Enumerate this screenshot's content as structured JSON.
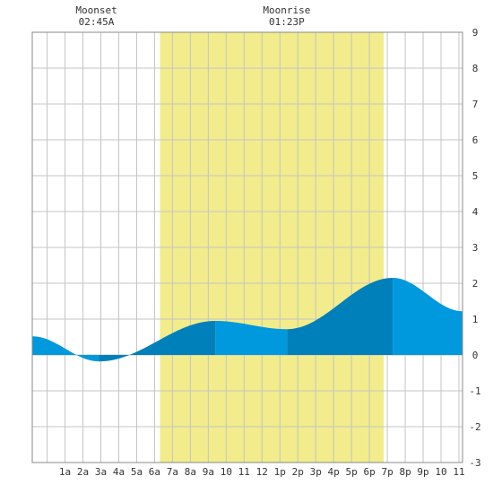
{
  "moon_events": [
    {
      "label": "Moonset",
      "time": "02:45A",
      "hour": 2.75
    },
    {
      "label": "Moonrise",
      "time": "01:23P",
      "hour": 13.38
    }
  ],
  "chart_data": {
    "type": "area",
    "title": "",
    "xlabel": "",
    "ylabel": "",
    "xlim": [
      -0.83,
      23.2
    ],
    "ylim": [
      -3,
      9
    ],
    "grid": true,
    "x_tick_labels": [
      "1a",
      "2a",
      "3a",
      "4a",
      "5a",
      "6a",
      "7a",
      "8a",
      "9a",
      "10",
      "11",
      "12",
      "1p",
      "2p",
      "3p",
      "4p",
      "5p",
      "6p",
      "7p",
      "8p",
      "9p",
      "10",
      "11"
    ],
    "y_tick_labels": [
      "9",
      "8",
      "7",
      "6",
      "5",
      "4",
      "3",
      "2",
      "1",
      "0",
      "-1",
      "-2",
      "-3"
    ],
    "daylight": {
      "start_hour": 6.3,
      "end_hour": 18.8
    },
    "tide_extremes": [
      {
        "hour": -0.83,
        "height": 0.52,
        "type": "start"
      },
      {
        "hour": 2.9,
        "height": -0.18,
        "type": "low"
      },
      {
        "hour": 9.4,
        "height": 0.95,
        "type": "high"
      },
      {
        "hour": 13.4,
        "height": 0.72,
        "type": "low"
      },
      {
        "hour": 19.3,
        "height": 2.15,
        "type": "high"
      },
      {
        "hour": 23.2,
        "height": 1.22,
        "type": "end"
      }
    ],
    "colors": {
      "tide_light": "#0099dd",
      "tide_dark": "#0080bb",
      "daylight": "#f2ec8c",
      "grid": "#c4c4c4",
      "border": "#888888"
    }
  }
}
